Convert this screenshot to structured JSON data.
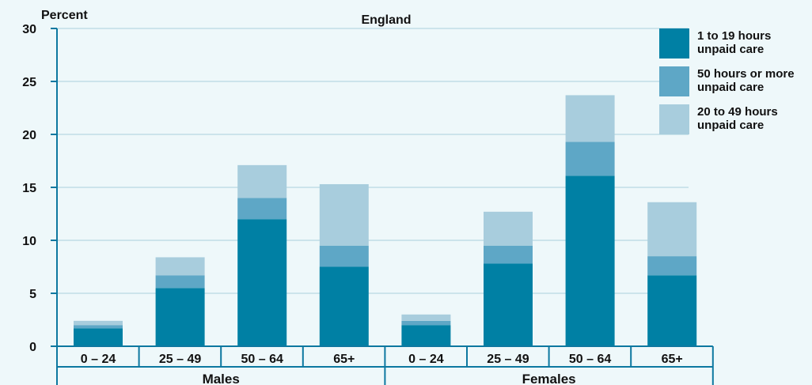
{
  "chart_data": {
    "type": "bar",
    "stacked": true,
    "title": "England",
    "ylabel": "Percent",
    "ylim": [
      0,
      30
    ],
    "yticks": [
      0,
      5,
      10,
      15,
      20,
      25,
      30
    ],
    "grid": true,
    "legend_position": "top-right",
    "groups": [
      {
        "label": "Males",
        "categories": [
          "0 – 24",
          "25 – 49",
          "50 – 64",
          "65+"
        ]
      },
      {
        "label": "Females",
        "categories": [
          "0 – 24",
          "25 – 49",
          "50 – 64",
          "65+"
        ]
      }
    ],
    "categories": [
      "0 – 24",
      "25 – 49",
      "50 – 64",
      "65+",
      "0 – 24",
      "25 – 49",
      "50 – 64",
      "65+"
    ],
    "series": [
      {
        "name": "1 to 19 hours unpaid care",
        "color": "#0080a4",
        "values": [
          1.7,
          5.5,
          12.0,
          7.5,
          2.0,
          7.8,
          16.1,
          6.7
        ]
      },
      {
        "name": "50 hours or more unpaid care",
        "color": "#5ea7c6",
        "values": [
          0.3,
          1.2,
          2.0,
          2.0,
          0.4,
          1.7,
          3.2,
          1.8
        ]
      },
      {
        "name": "20 to 49 hours unpaid care",
        "color": "#a8cddd",
        "values": [
          0.4,
          1.7,
          3.1,
          5.8,
          0.6,
          3.2,
          4.4,
          5.1
        ]
      }
    ],
    "legend": [
      {
        "line1": "1 to 19 hours",
        "line2": "unpaid care",
        "color": "#0080a4"
      },
      {
        "line1": "50 hours or more",
        "line2": "unpaid care",
        "color": "#5ea7c6"
      },
      {
        "line1": "20 to 49 hours",
        "line2": "unpaid care",
        "color": "#a8cddd"
      }
    ]
  }
}
